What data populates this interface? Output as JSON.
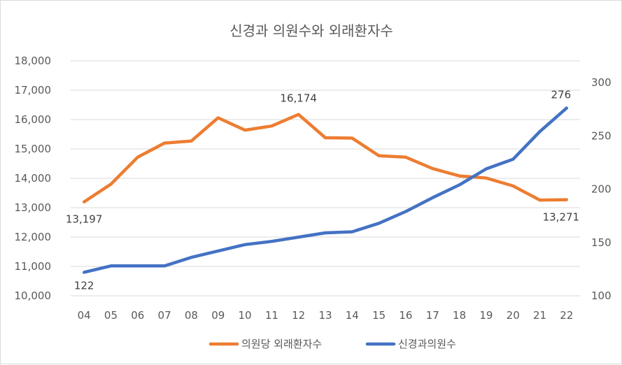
{
  "chart_data": {
    "type": "line",
    "title": "신경과 의원수와 외래환자수",
    "categories": [
      "04",
      "05",
      "06",
      "07",
      "08",
      "09",
      "10",
      "11",
      "12",
      "13",
      "14",
      "15",
      "16",
      "17",
      "18",
      "19",
      "20",
      "21",
      "22"
    ],
    "series": [
      {
        "name": "의원당 외래환자수",
        "axis": "left",
        "color": "#ed7d31",
        "values": [
          13197,
          13800,
          14720,
          15200,
          15270,
          16060,
          15640,
          15780,
          16174,
          15380,
          15370,
          14770,
          14720,
          14330,
          14080,
          14010,
          13740,
          13260,
          13271
        ],
        "data_labels": [
          {
            "index": 0,
            "text": "13,197"
          },
          {
            "index": 8,
            "text": "16,174"
          },
          {
            "index": 18,
            "text": "13,271"
          }
        ]
      },
      {
        "name": "신경과의원수",
        "axis": "right",
        "color": "#4472c4",
        "values": [
          122,
          128,
          128,
          128,
          136,
          142,
          148,
          151,
          155,
          159,
          160,
          168,
          179,
          192,
          204,
          219,
          228,
          254,
          276
        ],
        "data_labels": [
          {
            "index": 0,
            "text": "122"
          },
          {
            "index": 18,
            "text": "276"
          }
        ]
      }
    ],
    "y_left": {
      "min": 10000,
      "max": 18000,
      "step": 1000,
      "ticks": [
        "10,000",
        "11,000",
        "12,000",
        "13,000",
        "14,000",
        "15,000",
        "16,000",
        "17,000",
        "18,000"
      ]
    },
    "y_right": {
      "min": 100,
      "max": 300,
      "step": 50,
      "ticks": [
        "100",
        "150",
        "200",
        "250",
        "300"
      ]
    },
    "grid": true,
    "legend_position": "bottom"
  }
}
